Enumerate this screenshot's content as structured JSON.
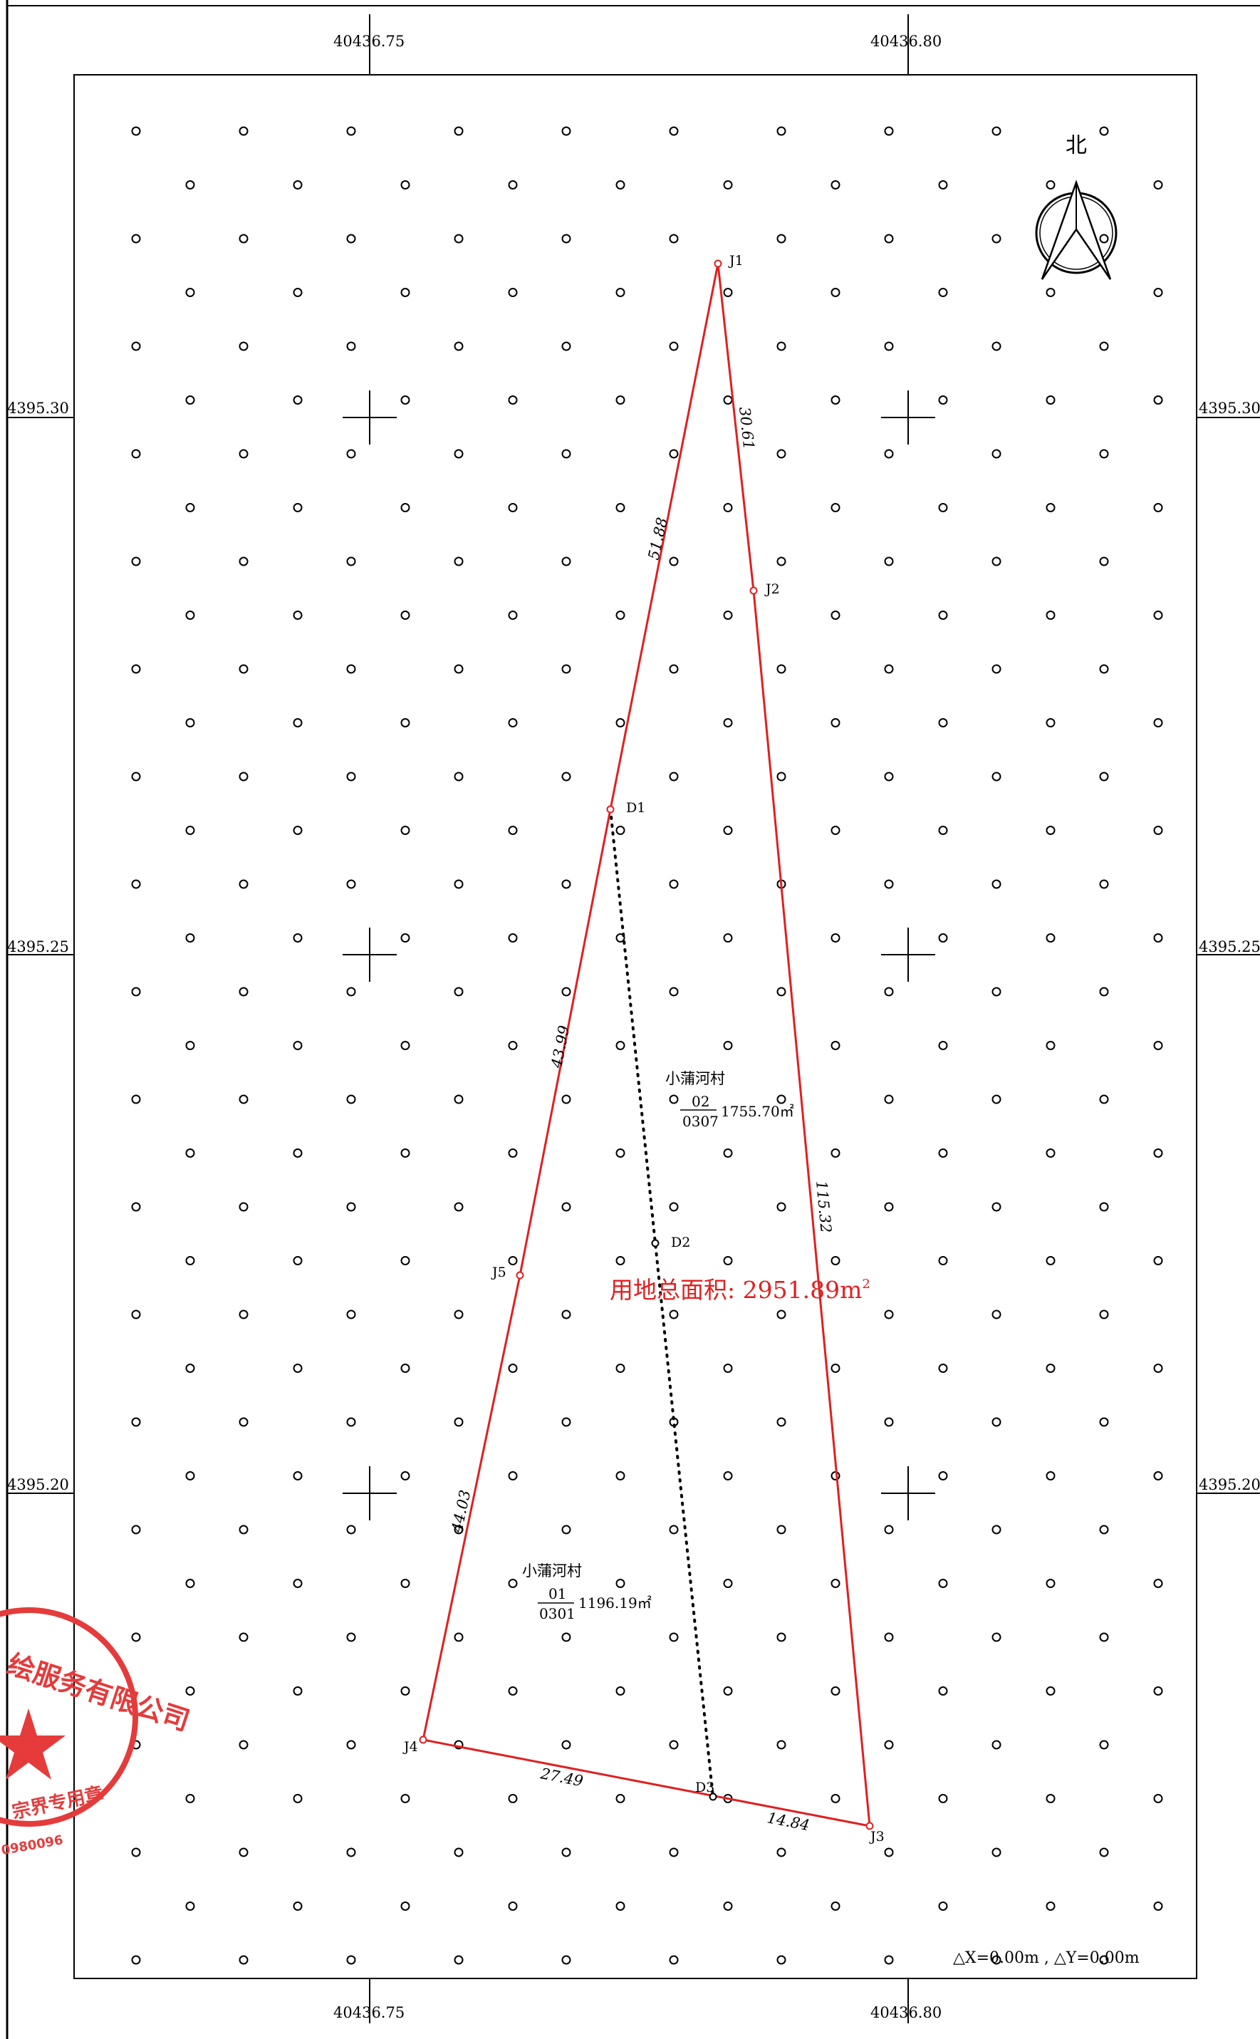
{
  "grid_labels": {
    "top": [
      "40436.75",
      "40436.80"
    ],
    "bottom": [
      "40436.75",
      "40436.80"
    ],
    "left": [
      "4395.30",
      "4395.25",
      "4395.20"
    ],
    "right": [
      "4395.30",
      "4395.25",
      "4395.20"
    ]
  },
  "compass": {
    "label": "北"
  },
  "points": {
    "J1": "J1",
    "J2": "J2",
    "J3": "J3",
    "J4": "J4",
    "J5": "J5",
    "D1": "D1",
    "D2": "D2",
    "D3": "D3"
  },
  "distances": {
    "J1_J2": "30.61",
    "J1_D1": "51.88",
    "D1_J5": "43.99",
    "J5_J4": "44.03",
    "J2_J3": "115.32",
    "J4_D3": "27.49",
    "D3_J3": "14.84"
  },
  "parcels": [
    {
      "name": "小蒲河村",
      "numerator": "02",
      "denominator": "0307",
      "area": "1755.70㎡"
    },
    {
      "name": "小蒲河村",
      "numerator": "01",
      "denominator": "0301",
      "area": "1196.19㎡"
    }
  ],
  "total_area": {
    "label": "用地总面积: 2951.89",
    "unit": "m",
    "sup": "2"
  },
  "offset_note": "△X=0.00m , △Y=0.00m",
  "seal_text": {
    "line1": "绘服务有限公司",
    "line2": "宗界专用章",
    "line3": "0980096"
  },
  "colors": {
    "boundary": "#e02020",
    "seal": "#e53b3b",
    "grid": "#000000"
  }
}
